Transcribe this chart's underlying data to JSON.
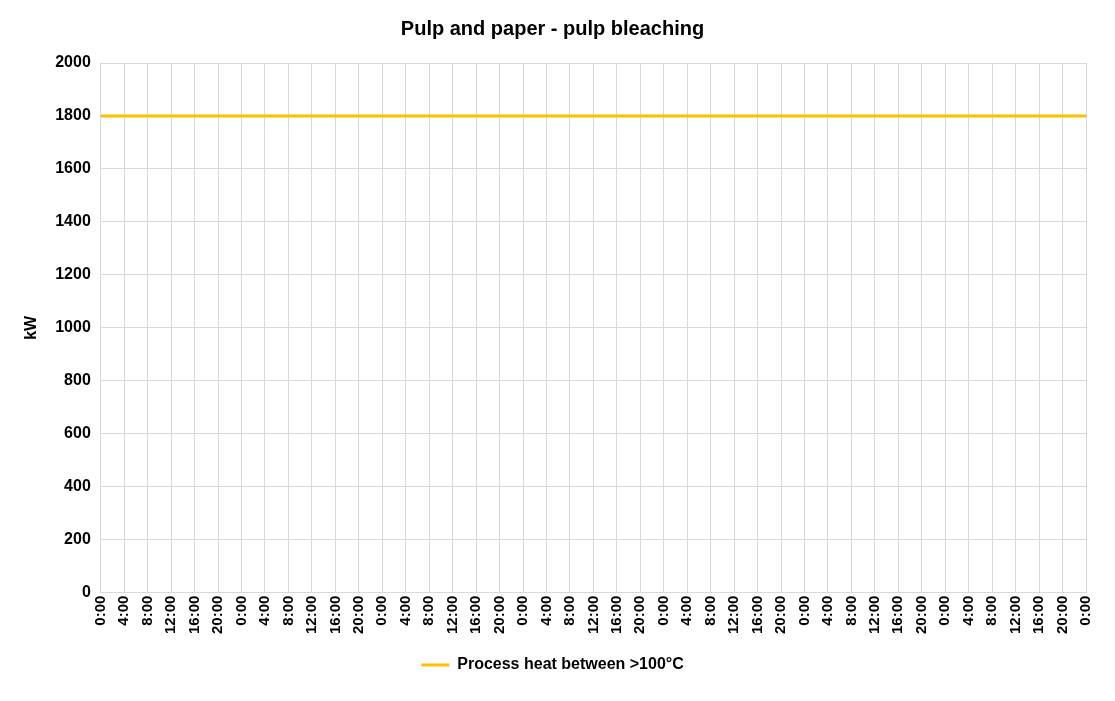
{
  "chart_data": {
    "type": "line",
    "title": "Pulp and paper - pulp bleaching",
    "ylabel": "kW",
    "categories": [
      "0:00",
      "4:00",
      "8:00",
      "12:00",
      "16:00",
      "20:00",
      "0:00",
      "4:00",
      "8:00",
      "12:00",
      "16:00",
      "20:00",
      "0:00",
      "4:00",
      "8:00",
      "12:00",
      "16:00",
      "20:00",
      "0:00",
      "4:00",
      "8:00",
      "12:00",
      "16:00",
      "20:00",
      "0:00",
      "4:00",
      "8:00",
      "12:00",
      "16:00",
      "20:00",
      "0:00",
      "4:00",
      "8:00",
      "12:00",
      "16:00",
      "20:00",
      "0:00",
      "4:00",
      "8:00",
      "12:00",
      "16:00",
      "20:00",
      "0:00"
    ],
    "series": [
      {
        "name": "Process heat between >100°C",
        "color": "#ffc000",
        "values": [
          1800,
          1800,
          1800,
          1800,
          1800,
          1800,
          1800,
          1800,
          1800,
          1800,
          1800,
          1800,
          1800,
          1800,
          1800,
          1800,
          1800,
          1800,
          1800,
          1800,
          1800,
          1800,
          1800,
          1800,
          1800,
          1800,
          1800,
          1800,
          1800,
          1800,
          1800,
          1800,
          1800,
          1800,
          1800,
          1800,
          1800,
          1800,
          1800,
          1800,
          1800,
          1800,
          1800
        ]
      }
    ],
    "ylim": [
      0,
      2000
    ],
    "yticks": [
      0,
      200,
      400,
      600,
      800,
      1000,
      1200,
      1400,
      1600,
      1800,
      2000
    ],
    "grid": true,
    "legend": "bottom",
    "marker": "none",
    "line_style": "solid"
  }
}
